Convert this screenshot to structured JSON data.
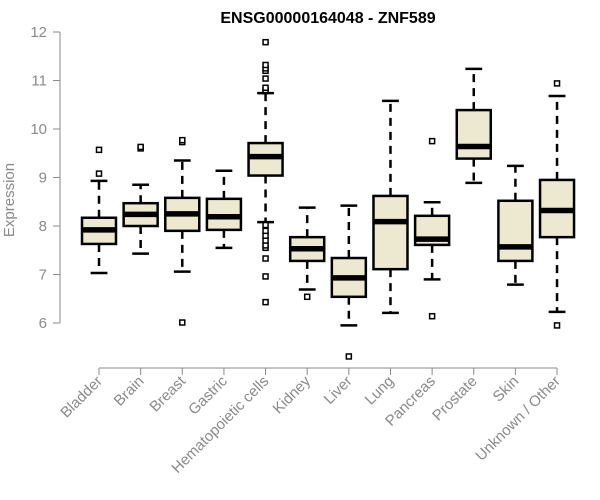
{
  "chart_data": {
    "type": "boxplot",
    "title": "ENSG00000164048 - ZNF589",
    "xlabel": "",
    "ylabel": "Expression",
    "ylim": [
      5.05,
      12.05
    ],
    "yticks": [
      6,
      7,
      8,
      9,
      10,
      11,
      12
    ],
    "grid": false,
    "box_fill": "#EDE8D0",
    "line_color": "#000000",
    "categories": [
      "Bladder",
      "Brain",
      "Breast",
      "Gastric",
      "Hematopoietic cells",
      "Kidney",
      "Liver",
      "Lung",
      "Pancreas",
      "Prostate",
      "Skin",
      "Unknown / Other"
    ],
    "boxes": [
      {
        "whisker_low": 7.03,
        "q1": 7.63,
        "median": 7.92,
        "q3": 8.17,
        "whisker_high": 8.93,
        "outliers": [
          9.08,
          9.57
        ]
      },
      {
        "whisker_low": 7.43,
        "q1": 8.0,
        "median": 8.24,
        "q3": 8.47,
        "whisker_high": 8.85,
        "outliers": [
          9.6,
          9.63
        ]
      },
      {
        "whisker_low": 7.06,
        "q1": 7.9,
        "median": 8.25,
        "q3": 8.58,
        "whisker_high": 9.35,
        "outliers": [
          6.01,
          9.73,
          9.77
        ]
      },
      {
        "whisker_low": 7.55,
        "q1": 7.92,
        "median": 8.19,
        "q3": 8.56,
        "whisker_high": 9.14,
        "outliers": []
      },
      {
        "whisker_low": 8.08,
        "q1": 9.04,
        "median": 9.43,
        "q3": 9.71,
        "whisker_high": 10.74,
        "outliers": [
          6.43,
          6.96,
          7.33,
          7.55,
          7.6,
          7.7,
          7.8,
          7.9,
          8.02,
          10.78,
          10.8,
          10.85,
          11.04,
          11.2,
          11.25,
          11.32,
          11.79
        ]
      },
      {
        "whisker_low": 6.69,
        "q1": 7.28,
        "median": 7.53,
        "q3": 7.77,
        "whisker_high": 8.38,
        "outliers": [
          6.54
        ]
      },
      {
        "whisker_low": 5.95,
        "q1": 6.54,
        "median": 6.93,
        "q3": 7.34,
        "whisker_high": 8.42,
        "outliers": [
          5.31
        ]
      },
      {
        "whisker_low": 6.21,
        "q1": 7.11,
        "median": 8.09,
        "q3": 8.62,
        "whisker_high": 10.58,
        "outliers": []
      },
      {
        "whisker_low": 6.9,
        "q1": 7.61,
        "median": 7.73,
        "q3": 8.21,
        "whisker_high": 8.49,
        "outliers": [
          6.14,
          9.75
        ]
      },
      {
        "whisker_low": 8.89,
        "q1": 9.39,
        "median": 9.64,
        "q3": 10.39,
        "whisker_high": 11.24,
        "outliers": []
      },
      {
        "whisker_low": 6.79,
        "q1": 7.28,
        "median": 7.57,
        "q3": 8.52,
        "whisker_high": 9.24,
        "outliers": []
      },
      {
        "whisker_low": 6.23,
        "q1": 7.77,
        "median": 8.32,
        "q3": 8.95,
        "whisker_high": 10.68,
        "outliers": [
          5.95,
          10.94
        ]
      }
    ]
  }
}
